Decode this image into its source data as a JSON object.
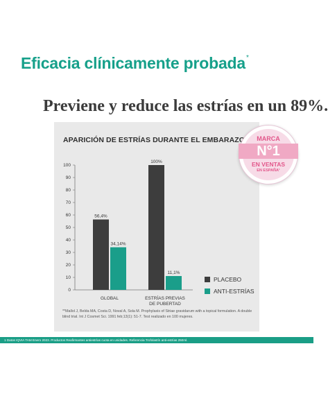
{
  "header": {
    "headline": "Eficacia clínicamente probada",
    "headline_mark": "*",
    "subheadline": "Previene y reduce las estrías en un 89%."
  },
  "badge": {
    "top": "MARCA",
    "main": "N°1",
    "middle": "EN VENTAS",
    "bottom": "EN ESPAÑA¹"
  },
  "footnote": "**Mallol J, Belda MA, Costa D, Noval A, Sola M. Prophylaxis of Striae gravidarum with a topical formulation. A double blind trial. Int J Cosmet Sci. 1991 feb;13(1): 51-7. Test realizado en 100 mujeres.",
  "footer": {
    "text": "1 Datos IQVIA TAM Enero 2023. Productos Reafirmantes antiestrías cuota en unidades. Referencia Trofolastín anti-estrías 250ml."
  },
  "colors": {
    "accent": "#16a08a",
    "placebo": "#3d3d3d",
    "anti": "#1a9e8a",
    "badge_pink": "#e2568a"
  },
  "chart_data": {
    "type": "bar",
    "title": "APARICIÓN DE ESTRÍAS DURANTE EL EMBARAZO",
    "categories": [
      [
        "GLOBAL"
      ],
      [
        "ESTRÍAS PREVIAS",
        "DE PUBERTAD"
      ]
    ],
    "series": [
      {
        "name": "PLACEBO",
        "values": [
          56.4,
          100
        ],
        "labels": [
          "56,4%",
          "100%"
        ],
        "color": "#3d3d3d"
      },
      {
        "name": "ANTI-ESTRÍAS",
        "values": [
          34.14,
          11.1
        ],
        "labels": [
          "34,14%",
          "11,1%"
        ],
        "color": "#1a9e8a"
      }
    ],
    "yticks": [
      0,
      10,
      20,
      30,
      40,
      50,
      60,
      70,
      80,
      90,
      100
    ],
    "ylim": [
      0,
      100
    ],
    "xlabel": "",
    "ylabel": "",
    "legend": "right",
    "grid": false
  }
}
